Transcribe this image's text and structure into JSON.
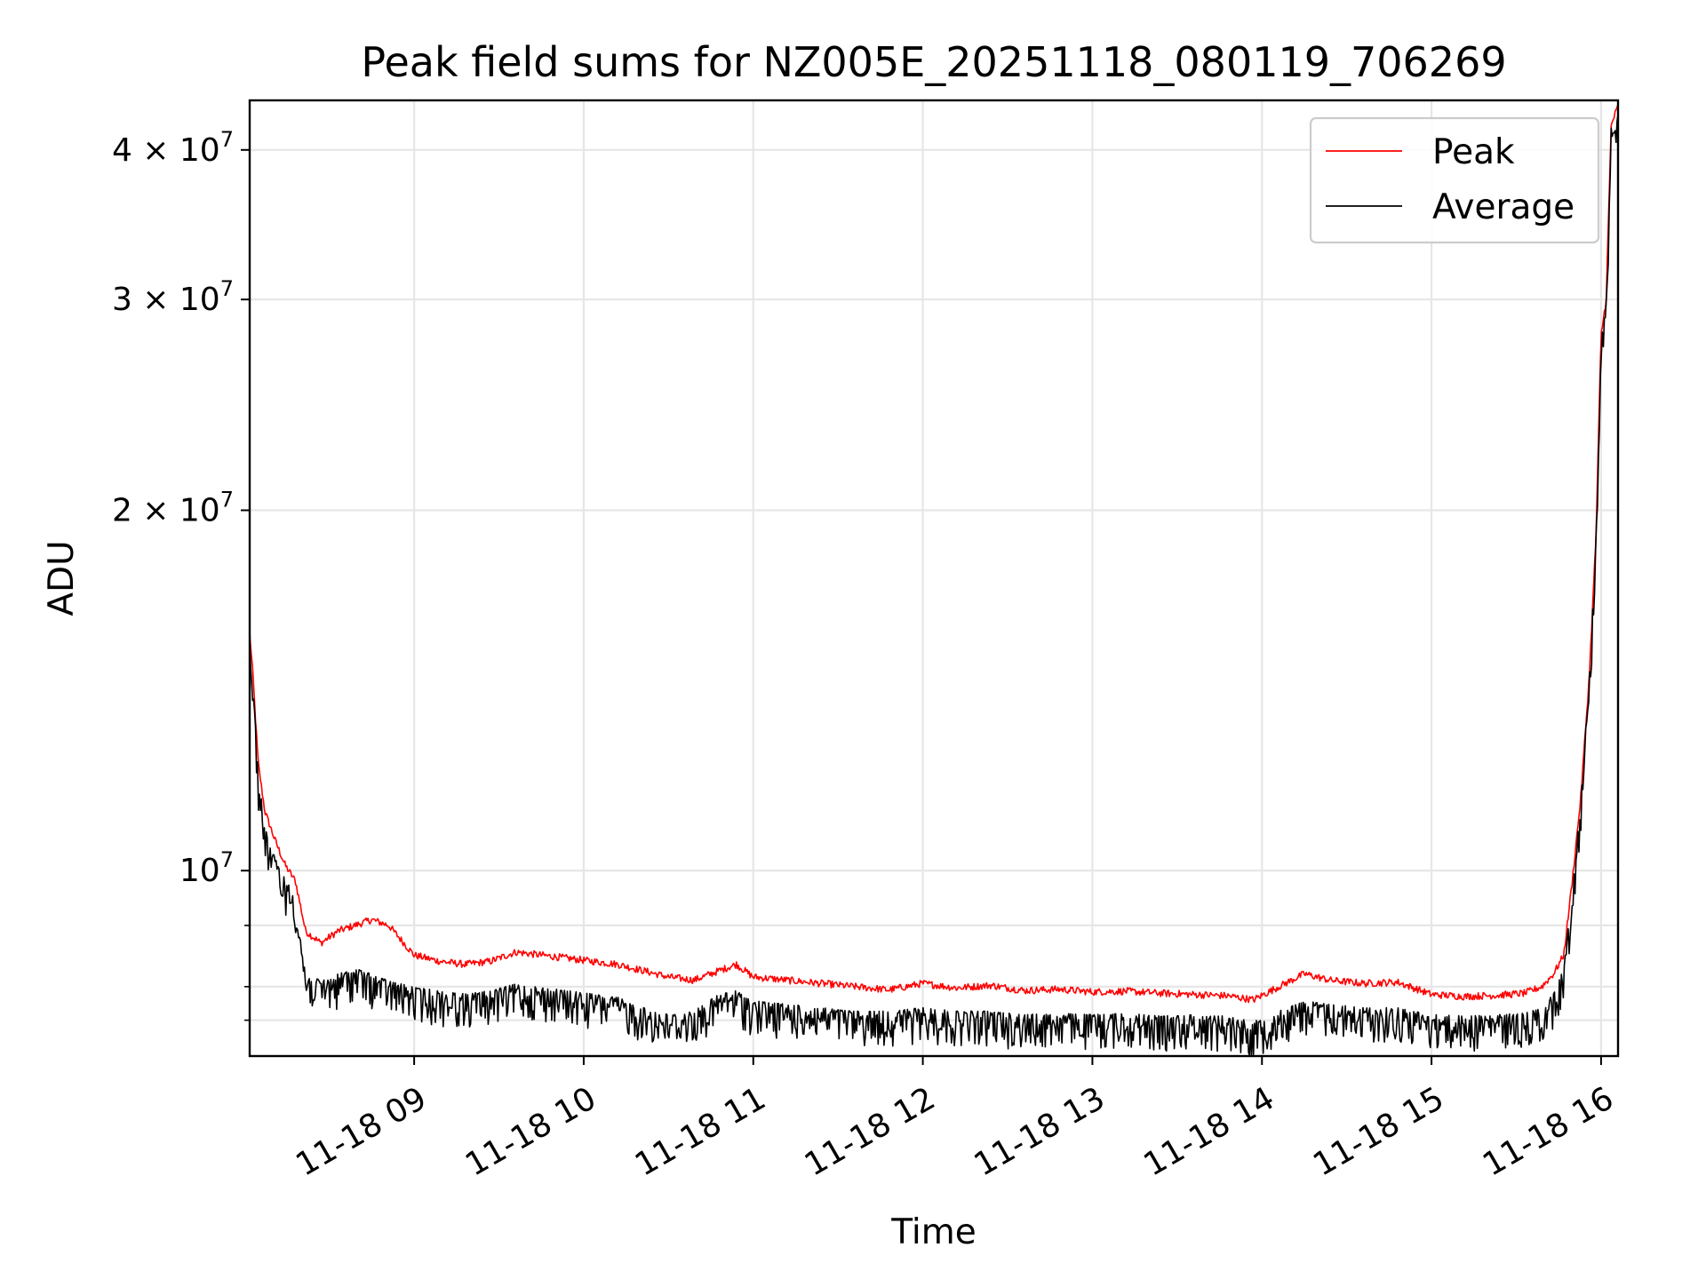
{
  "chart_data": {
    "type": "line",
    "title": "Peak field sums for NZ005E_20251118_080119_706269",
    "xlabel": "Time",
    "ylabel": "ADU",
    "yscale": "log",
    "ylim": [
      7000000,
      44000000
    ],
    "xlim_hours": [
      8.03,
      16.1
    ],
    "grid": true,
    "legend_position": "upper right",
    "x_ticks": [
      {
        "value": 9,
        "label": "11-18 09"
      },
      {
        "value": 10,
        "label": "11-18 10"
      },
      {
        "value": 11,
        "label": "11-18 11"
      },
      {
        "value": 12,
        "label": "11-18 12"
      },
      {
        "value": 13,
        "label": "11-18 13"
      },
      {
        "value": 14,
        "label": "11-18 14"
      },
      {
        "value": 15,
        "label": "11-18 15"
      },
      {
        "value": 16,
        "label": "11-18 16"
      }
    ],
    "y_ticks_major": [
      {
        "value": 10000000,
        "base": "10",
        "exp": "7",
        "coef": ""
      },
      {
        "value": 20000000,
        "base": "× 10",
        "exp": "7",
        "coef": "2"
      },
      {
        "value": 30000000,
        "base": "× 10",
        "exp": "7",
        "coef": "3"
      },
      {
        "value": 40000000,
        "base": "× 10",
        "exp": "7",
        "coef": "4"
      }
    ],
    "y_ticks_minor": [
      7500000,
      8000000,
      9000000
    ],
    "series": [
      {
        "name": "Peak",
        "color": "#ff0000",
        "x": [
          8.03,
          8.05,
          8.08,
          8.12,
          8.18,
          8.24,
          8.3,
          8.36,
          8.45,
          8.55,
          8.65,
          8.75,
          8.85,
          9.0,
          9.15,
          9.3,
          9.45,
          9.6,
          9.75,
          9.9,
          10.05,
          10.2,
          10.35,
          10.5,
          10.65,
          10.8,
          10.9,
          11.0,
          11.2,
          11.4,
          11.6,
          11.8,
          12.0,
          12.2,
          12.4,
          12.6,
          12.8,
          13.0,
          13.2,
          13.4,
          13.6,
          13.8,
          13.95,
          14.1,
          14.25,
          14.4,
          14.6,
          14.8,
          15.0,
          15.2,
          15.4,
          15.55,
          15.65,
          15.72,
          15.78,
          15.83,
          15.88,
          15.93,
          15.97,
          16.0,
          16.03,
          16.06,
          16.1
        ],
        "values": [
          15800000,
          14500000,
          12300000,
          11200000,
          10600000,
          10100000,
          9800000,
          8900000,
          8700000,
          8900000,
          9000000,
          9100000,
          9000000,
          8500000,
          8400000,
          8350000,
          8400000,
          8550000,
          8500000,
          8450000,
          8400000,
          8350000,
          8250000,
          8150000,
          8100000,
          8250000,
          8350000,
          8150000,
          8100000,
          8050000,
          8000000,
          7950000,
          8050000,
          7980000,
          8020000,
          7940000,
          7960000,
          7920000,
          7930000,
          7900000,
          7880000,
          7860000,
          7800000,
          8000000,
          8200000,
          8100000,
          8050000,
          8070000,
          7880000,
          7850000,
          7870000,
          7900000,
          8000000,
          8200000,
          8500000,
          9800000,
          11500000,
          14500000,
          19000000,
          28000000,
          30000000,
          42000000,
          43500000
        ]
      },
      {
        "name": "Average",
        "color": "#000000",
        "x": [
          8.03,
          8.05,
          8.08,
          8.12,
          8.18,
          8.24,
          8.3,
          8.36,
          8.45,
          8.55,
          8.65,
          8.75,
          8.85,
          9.0,
          9.15,
          9.3,
          9.45,
          9.6,
          9.75,
          9.9,
          10.05,
          10.2,
          10.35,
          10.5,
          10.65,
          10.8,
          10.9,
          11.0,
          11.2,
          11.4,
          11.6,
          11.8,
          12.0,
          12.2,
          12.4,
          12.6,
          12.8,
          13.0,
          13.2,
          13.4,
          13.6,
          13.8,
          13.95,
          14.1,
          14.25,
          14.4,
          14.6,
          14.8,
          15.0,
          15.2,
          15.4,
          15.55,
          15.65,
          15.72,
          15.78,
          15.83,
          15.88,
          15.93,
          15.97,
          16.0,
          16.03,
          16.06,
          16.1
        ],
        "values": [
          15500000,
          14000000,
          11800000,
          10600000,
          10000000,
          9600000,
          9300000,
          8000000,
          7900000,
          8000000,
          8100000,
          8000000,
          7900000,
          7800000,
          7750000,
          7700000,
          7750000,
          7850000,
          7800000,
          7750000,
          7700000,
          7650000,
          7500000,
          7400000,
          7450000,
          7700000,
          7750000,
          7600000,
          7550000,
          7500000,
          7450000,
          7450000,
          7500000,
          7450000,
          7450000,
          7400000,
          7420000,
          7400000,
          7420000,
          7380000,
          7400000,
          7380000,
          7300000,
          7450000,
          7600000,
          7550000,
          7500000,
          7500000,
          7400000,
          7380000,
          7400000,
          7420000,
          7500000,
          7700000,
          8100000,
          9400000,
          11200000,
          14100000,
          18500000,
          27000000,
          29000000,
          41000000,
          42500000
        ]
      }
    ]
  }
}
